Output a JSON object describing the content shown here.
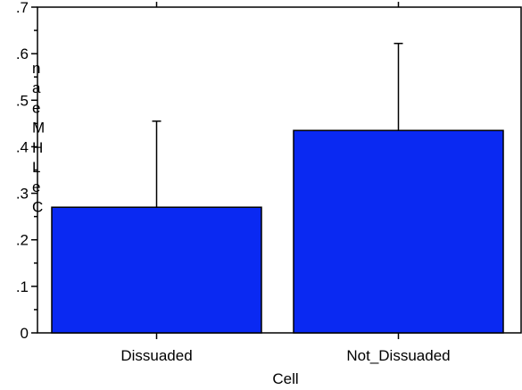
{
  "chart_data": {
    "type": "bar",
    "title": "",
    "xlabel": "Cell",
    "ylabel": "Mean CLH",
    "ylabel_display_chars": [
      "n",
      "a",
      "e",
      "M",
      "H",
      "L",
      "e",
      "C"
    ],
    "categories": [
      "Dissuaded",
      "Not_Dissuaded"
    ],
    "values": [
      0.27,
      0.435
    ],
    "error_upper": [
      0.455,
      0.622
    ],
    "ylim": [
      0,
      0.7
    ],
    "yticks": [
      0,
      0.1,
      0.2,
      0.3,
      0.4,
      0.5,
      0.6,
      0.7
    ],
    "ytick_labels": [
      "0",
      ".1",
      ".2",
      ".3",
      ".4",
      ".5",
      ".6",
      ".7"
    ],
    "grid": false,
    "legend": "none",
    "bar_color": "#0a29f2",
    "bar_stroke": "#000000"
  }
}
